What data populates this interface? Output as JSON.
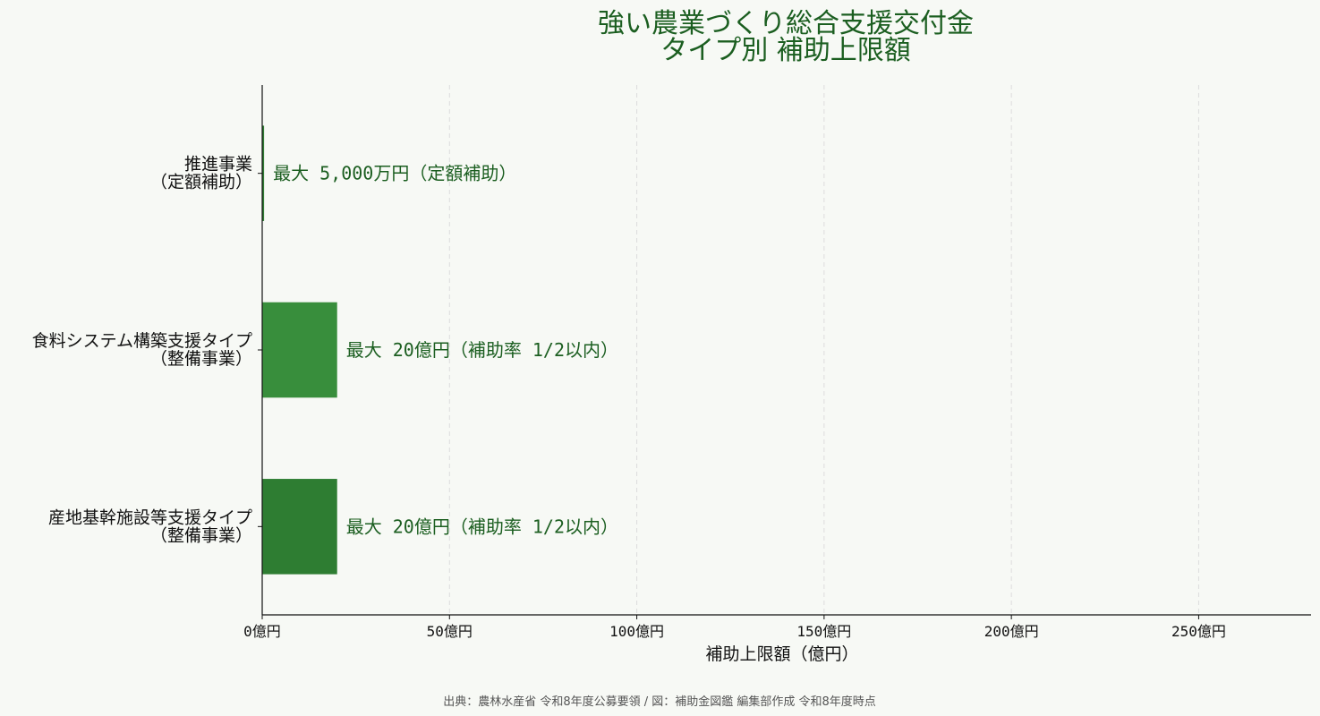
{
  "chart_data": {
    "type": "bar",
    "orientation": "horizontal",
    "title_lines": [
      "強い農業づくり総合支援交付金",
      "タイプ別 補助上限額"
    ],
    "categories": [
      [
        "推進事業",
        "（定額補助）"
      ],
      [
        "食料システム構築支援タイプ",
        "（整備事業）"
      ],
      [
        "産地基幹施設等支援タイプ",
        "（整備事業）"
      ]
    ],
    "values": [
      0.5,
      20,
      20
    ],
    "data_labels": [
      "最大 5,000万円（定額補助）",
      "最大 20億円（補助率 1/2以内）",
      "最大 20億円（補助率 1/2以内）"
    ],
    "bar_colors": [
      "#2e7d32",
      "#388e3c",
      "#2e7d32"
    ],
    "xlabel": "補助上限額（億円）",
    "xlim": [
      0,
      280
    ],
    "xticks": [
      0,
      50,
      100,
      150,
      200,
      250
    ],
    "xtick_labels": [
      "0億円",
      "50億円",
      "100億円",
      "150億円",
      "200億円",
      "250億円"
    ],
    "grid": "x-dashed",
    "legend": "none",
    "source": "出典：農林水産省 令和8年度公募要領 / 図：補助金図鑑 編集部作成 令和8年度時点"
  },
  "colors": {
    "background": "#f7f9f5",
    "title": "#1b5e20",
    "label": "#1b5e20",
    "grid": "#dcdcdc"
  }
}
